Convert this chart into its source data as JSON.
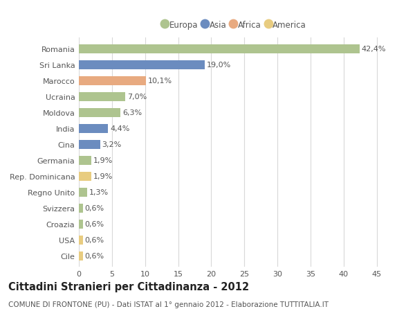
{
  "countries": [
    "Romania",
    "Sri Lanka",
    "Marocco",
    "Ucraina",
    "Moldova",
    "India",
    "Cina",
    "Germania",
    "Rep. Dominicana",
    "Regno Unito",
    "Svizzera",
    "Croazia",
    "USA",
    "Cile"
  ],
  "values": [
    42.4,
    19.0,
    10.1,
    7.0,
    6.3,
    4.4,
    3.2,
    1.9,
    1.9,
    1.3,
    0.6,
    0.6,
    0.6,
    0.6
  ],
  "labels": [
    "42,4%",
    "19,0%",
    "10,1%",
    "7,0%",
    "6,3%",
    "4,4%",
    "3,2%",
    "1,9%",
    "1,9%",
    "1,3%",
    "0,6%",
    "0,6%",
    "0,6%",
    "0,6%"
  ],
  "continents": [
    "Europa",
    "Asia",
    "Africa",
    "Europa",
    "Europa",
    "Asia",
    "Asia",
    "Europa",
    "America",
    "Europa",
    "Europa",
    "Europa",
    "America",
    "America"
  ],
  "colors": {
    "Europa": "#aec48f",
    "Asia": "#6b8cbf",
    "Africa": "#e8aa80",
    "America": "#e8cc80"
  },
  "legend_order": [
    "Europa",
    "Asia",
    "Africa",
    "America"
  ],
  "title": "Cittadini Stranieri per Cittadinanza - 2012",
  "subtitle": "COMUNE DI FRONTONE (PU) - Dati ISTAT al 1° gennaio 2012 - Elaborazione TUTTITALIA.IT",
  "xlim": [
    0,
    47
  ],
  "xticks": [
    0,
    5,
    10,
    15,
    20,
    25,
    30,
    35,
    40,
    45
  ],
  "background_color": "#ffffff",
  "grid_color": "#d8d8d8",
  "bar_height": 0.55,
  "label_fontsize": 8,
  "tick_fontsize": 8,
  "title_fontsize": 10.5,
  "subtitle_fontsize": 7.5,
  "text_color": "#555555",
  "title_color": "#222222"
}
